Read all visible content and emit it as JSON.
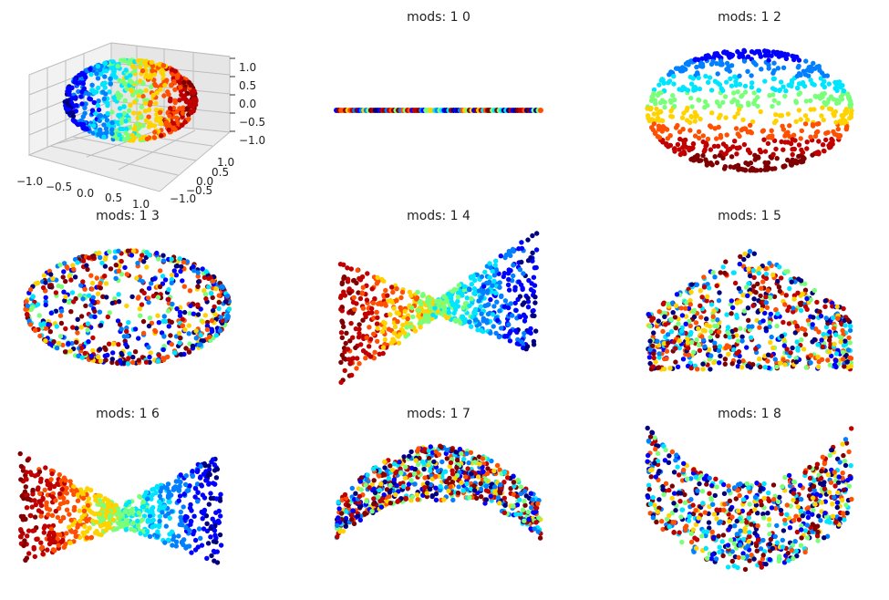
{
  "colormap": [
    "#00007f",
    "#0000ff",
    "#007fff",
    "#00e5ff",
    "#7aff7a",
    "#ffd300",
    "#ff4f00",
    "#c00000",
    "#7f0000"
  ],
  "chart_data": [
    {
      "type": "scatter",
      "title": "",
      "projection": "3d",
      "shape": "sphere",
      "axes": {
        "x": {
          "ticks": [
            "−1.0",
            "−0.5",
            "0.0",
            "0.5",
            "1.0"
          ]
        },
        "y": {
          "ticks": [
            "−1.0",
            "−0.5",
            "0.0",
            "0.5",
            "1.0"
          ]
        },
        "z": {
          "ticks": [
            "1.0",
            "0.5",
            "0.0",
            "−0.5",
            "−1.0"
          ]
        }
      },
      "grid": true
    },
    {
      "type": "scatter",
      "title": "mods: 1 0",
      "shape": "line",
      "axis": "off"
    },
    {
      "type": "scatter",
      "title": "mods: 1 2",
      "shape": "ellipsoid",
      "axis": "off"
    },
    {
      "type": "scatter",
      "title": "mods: 1 3",
      "shape": "ellipsoid-wide",
      "axis": "off"
    },
    {
      "type": "scatter",
      "title": "mods: 1 4",
      "shape": "bowtie",
      "axis": "off"
    },
    {
      "type": "scatter",
      "title": "mods: 1 5",
      "shape": "saddle-peak",
      "axis": "off"
    },
    {
      "type": "scatter",
      "title": "mods: 1 6",
      "shape": "bowtie-twisted",
      "axis": "off"
    },
    {
      "type": "scatter",
      "title": "mods: 1 7",
      "shape": "arch",
      "axis": "off"
    },
    {
      "type": "scatter",
      "title": "mods: 1 8",
      "shape": "bowl",
      "axis": "off"
    }
  ]
}
